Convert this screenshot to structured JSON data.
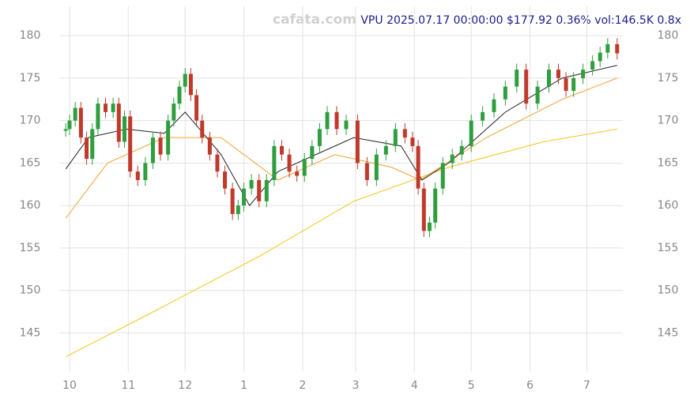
{
  "chart_data": {
    "type": "candlestick",
    "title": "VPU 2025.07.17 00:00:00 $177.92 0.36% vol:146.5K 0.8x",
    "watermark": "cafata.com",
    "x": [
      -2,
      0,
      3,
      6,
      9,
      12,
      15,
      19,
      23,
      26,
      29,
      32,
      36,
      40,
      44,
      48,
      52,
      55,
      58,
      61,
      64,
      67,
      70,
      74,
      78,
      82,
      86,
      89,
      92,
      96,
      100,
      104,
      108,
      112,
      116,
      120,
      124,
      128,
      132,
      136,
      141,
      146,
      152,
      157,
      162,
      167,
      172,
      177,
      181,
      184,
      187,
      190,
      193,
      197,
      202,
      207,
      212,
      218,
      224,
      230,
      236,
      241,
      247,
      253,
      258,
      262,
      266,
      271,
      276,
      280,
      284,
      289
    ],
    "open": [
      168.8,
      169,
      170,
      171.5,
      168,
      165.5,
      169,
      172,
      171,
      172,
      167.5,
      170.5,
      164,
      163,
      165,
      168,
      166,
      170,
      172,
      174,
      175.5,
      173,
      170,
      168,
      166,
      164,
      162,
      159,
      160,
      162,
      163,
      160.5,
      163,
      167,
      166,
      164,
      163.5,
      165.5,
      167,
      169,
      171,
      169,
      170,
      165,
      163,
      166,
      167,
      169,
      168,
      167,
      162,
      157,
      158,
      162,
      165,
      166,
      167,
      170,
      171,
      172.5,
      174,
      176,
      172,
      174,
      176,
      175,
      173.5,
      175,
      176,
      177,
      178,
      179
    ],
    "high": [
      169.7,
      170.7,
      172.2,
      172.2,
      168.7,
      169.7,
      172.7,
      172.7,
      172.7,
      172.7,
      171.2,
      171.2,
      164.7,
      165.7,
      168.7,
      168.7,
      170.7,
      172.7,
      174.7,
      176.2,
      176.2,
      173.7,
      170.7,
      168.7,
      166.7,
      164.7,
      162.7,
      160.7,
      162.7,
      163.7,
      163.7,
      163.7,
      167.7,
      167.7,
      166.7,
      164.7,
      166.2,
      167.7,
      169.7,
      171.7,
      171.7,
      170.7,
      170.7,
      165.7,
      166.7,
      167.7,
      169.7,
      169.7,
      168.7,
      167.7,
      162.7,
      158.7,
      162.7,
      165.7,
      166.7,
      167.7,
      170.7,
      171.7,
      173.2,
      174.7,
      176.7,
      176.7,
      174.7,
      176.7,
      176.7,
      175.7,
      175.7,
      176.7,
      177.7,
      178.7,
      179.7,
      179.7
    ],
    "low": [
      168.1,
      168.3,
      169.3,
      167.3,
      164.8,
      164.8,
      168.3,
      170.3,
      170.3,
      166.8,
      166.8,
      163.3,
      162.3,
      162.3,
      164.3,
      165.3,
      165.3,
      169.3,
      171.3,
      173.3,
      172.3,
      169.3,
      167.3,
      165.3,
      163.3,
      161.3,
      158.3,
      158.3,
      159.3,
      161.3,
      159.8,
      159.8,
      162.3,
      165.3,
      163.3,
      162.8,
      162.8,
      164.8,
      166.3,
      168.3,
      168.3,
      168.3,
      164.3,
      162.3,
      162.3,
      165.3,
      166.3,
      167.3,
      166.3,
      161.3,
      156.3,
      156.3,
      157.3,
      161.3,
      164.3,
      165.3,
      166.3,
      169.3,
      170.3,
      171.8,
      173.3,
      171.3,
      171.3,
      173.3,
      174.3,
      172.8,
      172.8,
      174.3,
      175.3,
      176.3,
      177.3,
      177.2
    ],
    "close": [
      169,
      170,
      171.5,
      168,
      165.5,
      169,
      172,
      171,
      172,
      167.5,
      170.5,
      164,
      163,
      165,
      168,
      166,
      170,
      172,
      174,
      175.5,
      173,
      170,
      168,
      166,
      164,
      162,
      159,
      160,
      162,
      163,
      160.5,
      163,
      167,
      166,
      164,
      163.5,
      165.5,
      167,
      169,
      171,
      169,
      170,
      165,
      163,
      166,
      167,
      169,
      168,
      167,
      162,
      157,
      158,
      162,
      165,
      166,
      167,
      170,
      171,
      172.5,
      174,
      176,
      172,
      174,
      176,
      175,
      173.5,
      175,
      176,
      177,
      178,
      179,
      177.92
    ],
    "up_color": "#2e9e3e",
    "down_color": "#c0392b",
    "overlays": [
      {
        "color": "#f5c518",
        "x": [
          -2,
          40,
          100,
          150,
          200,
          250,
          289
        ],
        "values": [
          142.2,
          147,
          154,
          160.5,
          164.5,
          167.5,
          169
        ]
      },
      {
        "color": "#f0a030",
        "x": [
          -2,
          20,
          50,
          80,
          110,
          140,
          170,
          185,
          220,
          260,
          289
        ],
        "values": [
          158.5,
          165,
          168,
          168,
          163,
          166,
          164.5,
          163,
          168,
          172.5,
          175
        ]
      },
      {
        "color": "#222222",
        "x": [
          -2,
          10,
          30,
          50,
          61,
          80,
          95,
          110,
          130,
          150,
          175,
          186,
          200,
          230,
          260,
          289
        ],
        "values": [
          164.3,
          168,
          169,
          168.5,
          171,
          166,
          160,
          164,
          166,
          168,
          167,
          163,
          165,
          171,
          175,
          176.5
        ]
      }
    ],
    "xlim": [
      -5,
      292
    ],
    "xticks": [
      {
        "value": 0,
        "label": "10"
      },
      {
        "value": 31,
        "label": "11"
      },
      {
        "value": 61,
        "label": "12"
      },
      {
        "value": 92,
        "label": "1"
      },
      {
        "value": 123,
        "label": "2"
      },
      {
        "value": 151,
        "label": "3"
      },
      {
        "value": 182,
        "label": "4"
      },
      {
        "value": 212,
        "label": "5"
      },
      {
        "value": 243,
        "label": "6"
      },
      {
        "value": 273,
        "label": "7"
      }
    ],
    "ylim": [
      141.5,
      181.5
    ],
    "yticks": [
      145,
      150,
      155,
      160,
      165,
      170,
      175,
      180
    ],
    "grid": true
  }
}
